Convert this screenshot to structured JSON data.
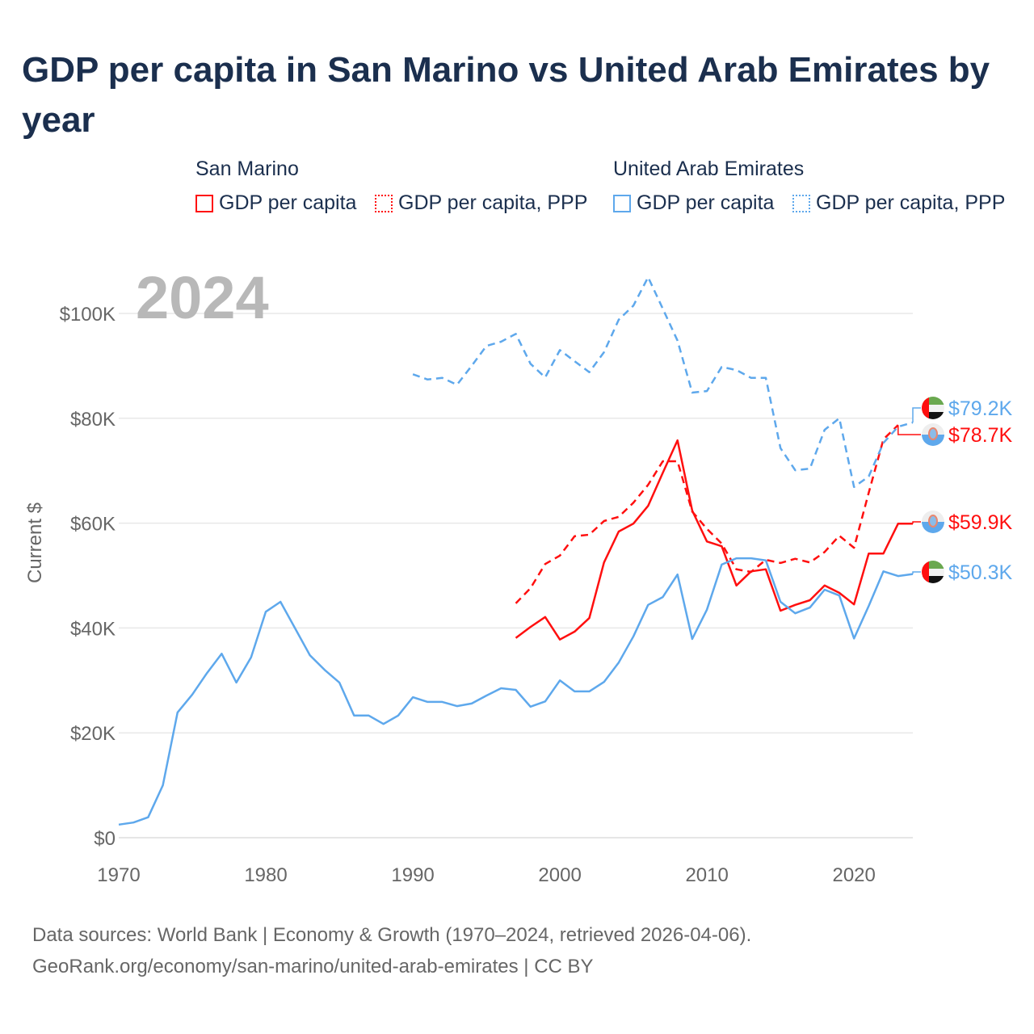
{
  "title": "GDP per capita in San Marino vs United Arab Emirates by year",
  "legend": {
    "groups": [
      {
        "name": "San Marino",
        "items": [
          "GDP per capita",
          "GDP per capita, PPP"
        ]
      },
      {
        "name": "United Arab Emirates",
        "items": [
          "GDP per capita",
          "GDP per capita, PPP"
        ]
      }
    ]
  },
  "year_overlay": "2024",
  "end_labels": {
    "uae_ppp": "$79.2K",
    "sm_ppp": "$78.7K",
    "sm_gdp": "$59.9K",
    "uae_gdp": "$50.3K"
  },
  "colors": {
    "san_marino": "#ff0f0f",
    "uae": "#5ea8ec",
    "title": "#1b2f4e"
  },
  "source": {
    "line1": "Data sources: World Bank | Economy & Growth (1970–2024, retrieved 2026-04-06).",
    "line2": "GeoRank.org/economy/san-marino/united-arab-emirates | CC BY"
  },
  "chart_data": {
    "type": "line",
    "title": "GDP per capita in San Marino vs United Arab Emirates by year",
    "xlabel": "",
    "ylabel": "Current $",
    "xlim": [
      1970,
      2024
    ],
    "ylim": [
      0,
      110000
    ],
    "x_ticks": [
      1970,
      1980,
      1990,
      2000,
      2010,
      2020
    ],
    "x_tick_labels": [
      "1970",
      "1980",
      "1990",
      "2000",
      "2010",
      "2020"
    ],
    "y_ticks": [
      0,
      20000,
      40000,
      60000,
      80000,
      100000
    ],
    "y_tick_labels": [
      "$0",
      "$20K",
      "$40K",
      "$60K",
      "$80K",
      "$100K"
    ],
    "grid": true,
    "legend_position": "top",
    "series": [
      {
        "name": "San Marino GDP per capita",
        "key": "sm_gdp",
        "dashed": false,
        "start": 1997,
        "values": [
          38.1,
          40.2,
          42.1,
          37.8,
          39.3,
          41.9,
          52.5,
          58.4,
          59.9,
          63.3,
          69.6,
          75.8,
          62.4,
          56.5,
          55.6,
          48.1,
          50.8,
          51.2,
          43.3,
          44.4,
          45.3,
          48.1,
          46.7,
          44.5,
          54.2,
          54.2,
          59.9,
          59.9
        ]
      },
      {
        "name": "San Marino GDP per capita, PPP",
        "key": "sm_ppp",
        "dashed": true,
        "start": 1997,
        "values": [
          44.7,
          47.6,
          52.2,
          53.8,
          57.5,
          57.8,
          60.4,
          61.2,
          63.9,
          67.3,
          71.8,
          71.8,
          62.2,
          58.9,
          56.1,
          51.2,
          50.7,
          53.0,
          52.4,
          53.2,
          52.5,
          54.5,
          57.6,
          55.3,
          65.8,
          76.0,
          78.7
        ]
      },
      {
        "name": "United Arab Emirates GDP per capita",
        "key": "uae_gdp",
        "dashed": false,
        "start": 1970,
        "values": [
          2.5,
          2.9,
          3.9,
          10.0,
          23.9,
          27.3,
          31.4,
          35.1,
          29.6,
          34.4,
          43.1,
          45.0,
          39.9,
          34.8,
          32.0,
          29.6,
          23.3,
          23.3,
          21.7,
          23.3,
          26.8,
          25.9,
          25.9,
          25.1,
          25.6,
          27.1,
          28.5,
          28.2,
          25.0,
          26.0,
          30.0,
          27.9,
          27.9,
          29.7,
          33.4,
          38.4,
          44.4,
          45.9,
          50.2,
          37.9,
          43.5,
          52.1,
          53.3,
          53.3,
          52.9,
          45.0,
          42.8,
          43.9,
          47.3,
          46.2,
          38.0,
          44.2,
          50.8,
          49.9,
          50.3
        ]
      },
      {
        "name": "United Arab Emirates GDP per capita, PPP",
        "key": "uae_ppp",
        "dashed": true,
        "start": 1990,
        "values": [
          88.4,
          87.4,
          87.7,
          86.4,
          90.0,
          93.8,
          94.6,
          96.1,
          90.4,
          87.8,
          93.0,
          90.9,
          88.8,
          92.6,
          98.8,
          101.5,
          106.9,
          100.9,
          94.8,
          84.9,
          85.2,
          89.8,
          89.2,
          87.7,
          87.7,
          74.3,
          70.1,
          70.4,
          77.8,
          80.0,
          66.9,
          68.9,
          75.3,
          78.4,
          79.2
        ]
      }
    ],
    "value_unit": "thousand USD"
  }
}
